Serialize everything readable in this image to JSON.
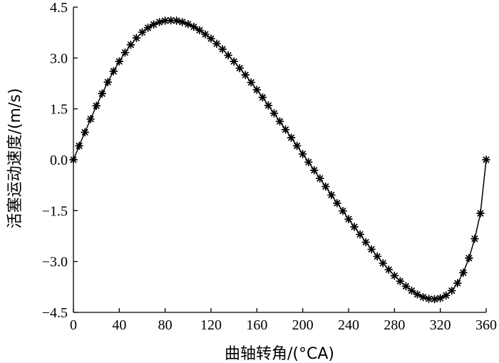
{
  "chart_data": {
    "type": "line",
    "title": "",
    "xlabel": "曲轴转角/(°CA)",
    "ylabel": "活塞运动速度/(m/s)",
    "xlim": [
      0,
      360
    ],
    "ylim": [
      -4.5,
      4.5
    ],
    "xticks": [
      0,
      40,
      80,
      120,
      160,
      200,
      240,
      280,
      320,
      360
    ],
    "yticks": [
      4.5,
      3.0,
      1.5,
      0.0,
      -1.5,
      -3.0,
      -4.5
    ],
    "xtick_labels": [
      "0",
      "40",
      "80",
      "120",
      "160",
      "200",
      "240",
      "280",
      "320",
      "360"
    ],
    "ytick_labels": [
      "4.5",
      "3.0",
      "1.5",
      "0.0",
      "−1.5",
      "−3.0",
      "−4.5"
    ],
    "grid": false,
    "legend": false,
    "marker": "asterisk",
    "color": "#000000",
    "series": [
      {
        "x": [
          0,
          5,
          10,
          15,
          20,
          25,
          30,
          35,
          40,
          45,
          50,
          55,
          60,
          65,
          70,
          75,
          80,
          85,
          90,
          95,
          100,
          105,
          110,
          115,
          120,
          125,
          130,
          135,
          140,
          145,
          150,
          155,
          160,
          165,
          170,
          175,
          180,
          185,
          190,
          195,
          200,
          205,
          210,
          215,
          220,
          225,
          230,
          235,
          240,
          245,
          250,
          255,
          260,
          265,
          270,
          275,
          280,
          285,
          290,
          295,
          300,
          305,
          310,
          315,
          320,
          325,
          330,
          335,
          340,
          345,
          350,
          355,
          360
        ],
        "values": [
          0.0,
          0.41,
          0.81,
          1.2,
          1.59,
          1.95,
          2.29,
          2.61,
          2.9,
          3.16,
          3.39,
          3.59,
          3.76,
          3.89,
          3.99,
          4.06,
          4.1,
          4.11,
          4.1,
          4.06,
          4.0,
          3.92,
          3.82,
          3.7,
          3.57,
          3.42,
          3.26,
          3.08,
          2.9,
          2.7,
          2.5,
          2.28,
          2.06,
          1.84,
          1.6,
          1.37,
          1.13,
          0.89,
          0.65,
          0.41,
          0.17,
          -0.07,
          -0.31,
          -0.55,
          -0.79,
          -1.04,
          -1.28,
          -1.51,
          -1.75,
          -1.98,
          -2.2,
          -2.43,
          -2.64,
          -2.85,
          -3.05,
          -3.24,
          -3.42,
          -3.58,
          -3.73,
          -3.86,
          -3.97,
          -4.05,
          -4.1,
          -4.11,
          -4.08,
          -4.0,
          -3.86,
          -3.64,
          -3.33,
          -2.9,
          -2.33,
          -1.58,
          0.0
        ]
      }
    ]
  }
}
